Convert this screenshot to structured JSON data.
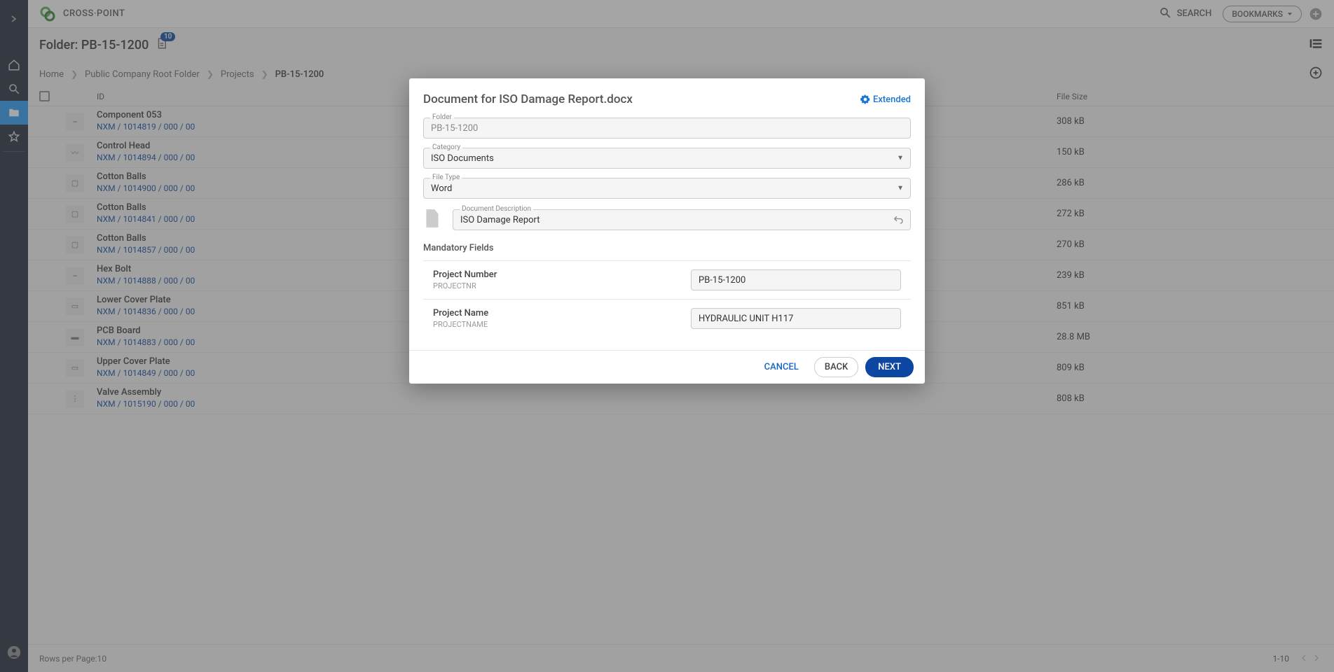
{
  "brand": "CROSS·POINT",
  "topbar": {
    "search_label": "SEARCH",
    "bookmarks_label": "BOOKMARKS"
  },
  "folder": {
    "prefix": "Folder: ",
    "name": "PB-15-1200",
    "doc_count": "10"
  },
  "breadcrumb": [
    {
      "label": "Home"
    },
    {
      "label": "Public Company Root Folder"
    },
    {
      "label": "Projects"
    },
    {
      "label": "PB-15-1200",
      "current": true
    }
  ],
  "columns": {
    "id": "ID",
    "filesize": "File Size"
  },
  "rows": [
    {
      "name": "Component 053",
      "id": "NXM / 1014819 / 000 / 00",
      "size": "308 kB",
      "glyph": "⎯"
    },
    {
      "name": "Control Head",
      "id": "NXM / 1014894 / 000 / 00",
      "size": "150 kB",
      "glyph": "〰"
    },
    {
      "name": "Cotton Balls",
      "id": "NXM / 1014900 / 000 / 00",
      "size": "286 kB",
      "glyph": "▢"
    },
    {
      "name": "Cotton Balls",
      "id": "NXM / 1014841 / 000 / 00",
      "size": "272 kB",
      "glyph": "▢"
    },
    {
      "name": "Cotton Balls",
      "id": "NXM / 1014857 / 000 / 00",
      "size": "270 kB",
      "glyph": "▢"
    },
    {
      "name": "Hex Bolt",
      "id": "NXM / 1014888 / 000 / 00",
      "size": "239 kB",
      "glyph": "⎯"
    },
    {
      "name": "Lower Cover Plate",
      "id": "NXM / 1014836 / 000 / 00",
      "size": "851 kB",
      "glyph": "▭"
    },
    {
      "name": "PCB Board",
      "id": "NXM / 1014883 / 000 / 00",
      "size": "28.8 MB",
      "glyph": "▬"
    },
    {
      "name": "Upper Cover Plate",
      "id": "NXM / 1014849 / 000 / 00",
      "size": "809 kB",
      "glyph": "▭"
    },
    {
      "name": "Valve Assembly",
      "id": "NXM / 1015190 / 000 / 00",
      "size": "808 kB",
      "glyph": "⋮"
    }
  ],
  "footer": {
    "rows_label": "Rows per Page: ",
    "rows_value": "10",
    "range": "1-10"
  },
  "dialog": {
    "title": "Document for ISO Damage Report.docx",
    "extended_label": "Extended",
    "folder_label": "Folder",
    "folder_value": "PB-15-1200",
    "category_label": "Category",
    "category_value": "ISO Documents",
    "filetype_label": "File Type",
    "filetype_value": "Word",
    "desc_label": "Document Description",
    "desc_value": "ISO Damage Report",
    "mandatory_title": "Mandatory Fields",
    "fields": [
      {
        "name": "Project Number",
        "key": "PROJECTNR",
        "value": "PB-15-1200"
      },
      {
        "name": "Project Name",
        "key": "PROJECTNAME",
        "value": "HYDRAULIC UNIT H117"
      }
    ],
    "cancel": "CANCEL",
    "back": "BACK",
    "next": "NEXT"
  }
}
